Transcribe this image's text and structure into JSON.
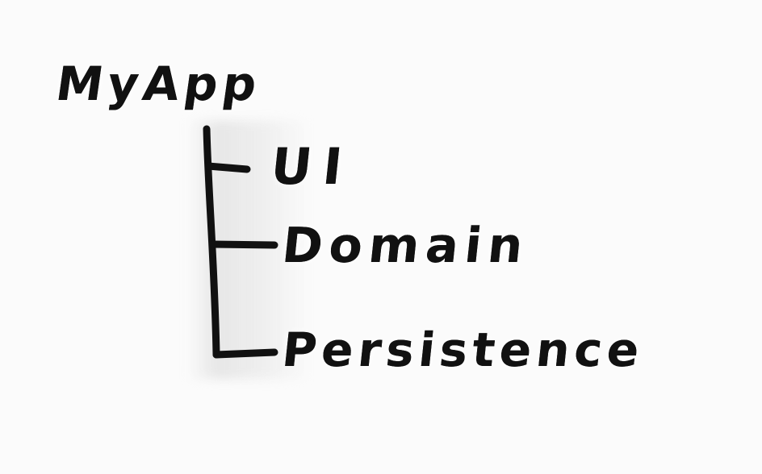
{
  "diagram": {
    "root": {
      "label": "MyApp"
    },
    "children": [
      {
        "label": "UI"
      },
      {
        "label": "Domain"
      },
      {
        "label": "Persistence"
      }
    ]
  },
  "colors": {
    "ink": "#111111",
    "paper": "#fbfbfb"
  }
}
